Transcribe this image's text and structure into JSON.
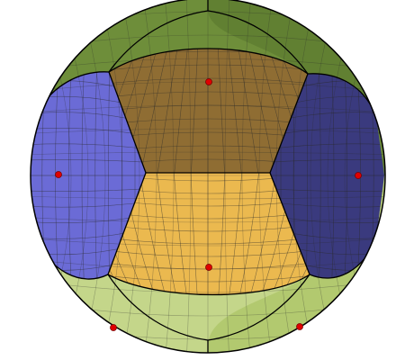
{
  "diagram": {
    "kind": "spherical-voronoi-tessellation",
    "background": "#ffffff",
    "outline_color": "#000000",
    "grid_color": "#2a2a2a",
    "regions": [
      {
        "id": "top-front",
        "color": "#8f6d33"
      },
      {
        "id": "bottom-front",
        "color": "#ebb94f"
      },
      {
        "id": "left",
        "color": "#6b6bd6"
      },
      {
        "id": "right",
        "color": "#3a3a7e"
      },
      {
        "id": "top-back",
        "color": "#6e8e3a"
      },
      {
        "id": "bottom-back",
        "color": "#c4d68a"
      }
    ],
    "site_color": "#e00000",
    "site_count": 6
  }
}
